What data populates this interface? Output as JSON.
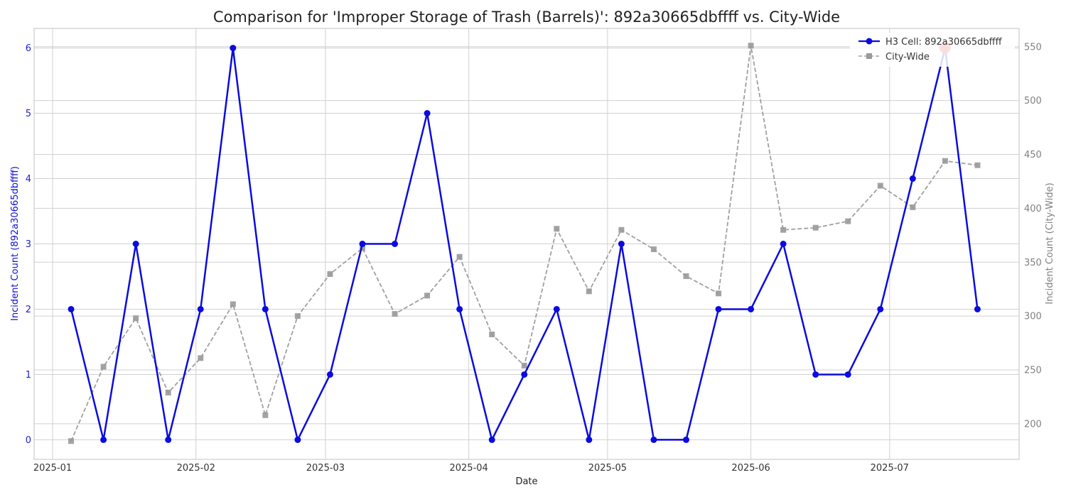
{
  "chart_data": {
    "type": "line",
    "title": "Comparison for 'Improper Storage of Trash (Barrels)': 892a30665dbffff vs. City-Wide",
    "xlabel": "Date",
    "ylabel_left": "Incident Count (892a30665dbffff)",
    "ylabel_right": "Incident Count (City-Wide)",
    "x_ticks": [
      "2025-01",
      "2025-02",
      "2025-03",
      "2025-04",
      "2025-05",
      "2025-06",
      "2025-07"
    ],
    "x_tick_dates": [
      "2025-01-01",
      "2025-02-01",
      "2025-03-01",
      "2025-04-01",
      "2025-05-01",
      "2025-06-01",
      "2025-07-01"
    ],
    "y_left_ticks": [
      0,
      1,
      2,
      3,
      4,
      5,
      6
    ],
    "y_right_ticks": [
      200,
      250,
      300,
      350,
      400,
      450,
      500,
      550
    ],
    "ylim_left": [
      -0.3,
      6.3
    ],
    "ylim_right": [
      167,
      567
    ],
    "xlim": [
      "2024-12-28",
      "2025-07-29"
    ],
    "grid": true,
    "legend_position": "top-right",
    "colors": {
      "primary": "#0b0be0",
      "secondary": "#a0a0a0",
      "highlight": "#e02020"
    },
    "dates": [
      "2025-01-05",
      "2025-01-12",
      "2025-01-19",
      "2025-01-26",
      "2025-02-02",
      "2025-02-09",
      "2025-02-16",
      "2025-02-23",
      "2025-03-02",
      "2025-03-09",
      "2025-03-16",
      "2025-03-23",
      "2025-03-30",
      "2025-04-06",
      "2025-04-13",
      "2025-04-20",
      "2025-04-27",
      "2025-05-04",
      "2025-05-11",
      "2025-05-18",
      "2025-05-25",
      "2025-06-01",
      "2025-06-08",
      "2025-06-15",
      "2025-06-22",
      "2025-06-29",
      "2025-07-06",
      "2025-07-13",
      "2025-07-20"
    ],
    "series": [
      {
        "name": "H3 Cell: 892a30665dbffff",
        "axis": "left",
        "style": "solid-circle",
        "values": [
          2,
          0,
          3,
          0,
          2,
          6,
          2,
          0,
          1,
          3,
          3,
          5,
          2,
          0,
          1,
          2,
          0,
          3,
          0,
          0,
          2,
          2,
          3,
          1,
          1,
          2,
          4,
          6,
          2
        ]
      },
      {
        "name": "City-Wide",
        "axis": "right",
        "style": "dashed-square",
        "values": [
          184,
          253,
          298,
          229,
          261,
          311,
          208,
          300,
          339,
          363,
          302,
          319,
          355,
          283,
          254,
          381,
          323,
          380,
          362,
          337,
          321,
          551,
          380,
          382,
          388,
          421,
          401,
          444,
          440
        ]
      }
    ],
    "highlight": {
      "date": "2025-07-13",
      "value": 6,
      "axis": "left"
    }
  }
}
